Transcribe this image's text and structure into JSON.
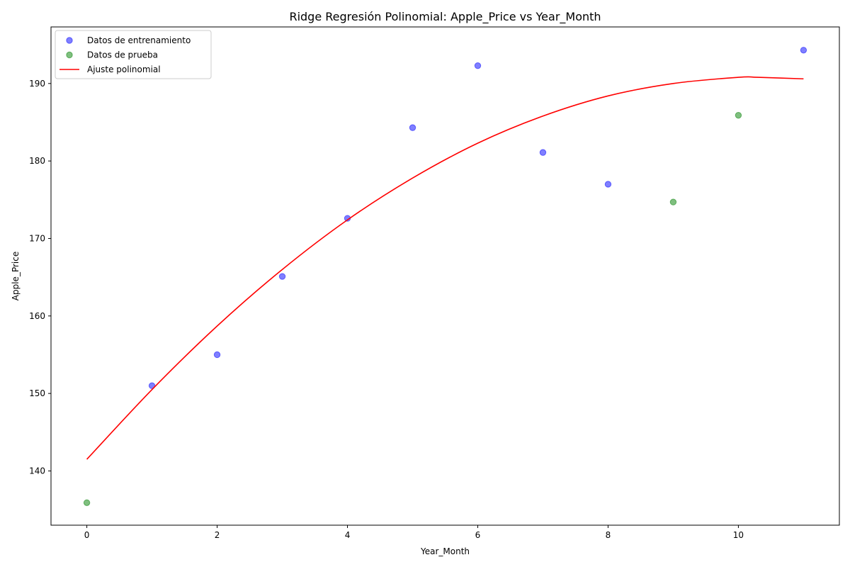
{
  "chart_data": {
    "type": "scatter",
    "title": "Ridge Regresión Polinomial: Apple_Price vs Year_Month",
    "xlabel": "Year_Month",
    "ylabel": "Apple_Price",
    "xlim": [
      -0.55,
      11.55
    ],
    "ylim": [
      133.0,
      197.3
    ],
    "xticks": [
      0,
      2,
      4,
      6,
      8,
      10
    ],
    "yticks": [
      140,
      150,
      160,
      170,
      180,
      190
    ],
    "grid": false,
    "legend_position": "top-left",
    "series": [
      {
        "name": "Datos de entrenamiento",
        "kind": "scatter",
        "color": "#0000ff",
        "points": [
          {
            "x": 1,
            "y": 151.0
          },
          {
            "x": 2,
            "y": 155.0
          },
          {
            "x": 3,
            "y": 165.1
          },
          {
            "x": 4,
            "y": 172.6
          },
          {
            "x": 5,
            "y": 184.3
          },
          {
            "x": 6,
            "y": 192.3
          },
          {
            "x": 7,
            "y": 181.1
          },
          {
            "x": 8,
            "y": 177.0
          },
          {
            "x": 11,
            "y": 194.3
          }
        ]
      },
      {
        "name": "Datos de prueba",
        "kind": "scatter",
        "color": "#008000",
        "points": [
          {
            "x": 0,
            "y": 135.9
          },
          {
            "x": 9,
            "y": 174.7
          },
          {
            "x": 10,
            "y": 185.9
          }
        ]
      },
      {
        "name": "Ajuste polinomial",
        "kind": "line",
        "color": "#ff0000",
        "points": [
          {
            "x": 0,
            "y": 141.5
          },
          {
            "x": 1,
            "y": 150.5
          },
          {
            "x": 2,
            "y": 158.7
          },
          {
            "x": 3,
            "y": 166.0
          },
          {
            "x": 4,
            "y": 172.4
          },
          {
            "x": 5,
            "y": 177.8
          },
          {
            "x": 6,
            "y": 182.3
          },
          {
            "x": 7,
            "y": 185.8
          },
          {
            "x": 8,
            "y": 188.4
          },
          {
            "x": 9,
            "y": 190.0
          },
          {
            "x": 10,
            "y": 190.8
          },
          {
            "x": 10.3,
            "y": 190.8
          },
          {
            "x": 11,
            "y": 190.6
          }
        ]
      }
    ]
  }
}
